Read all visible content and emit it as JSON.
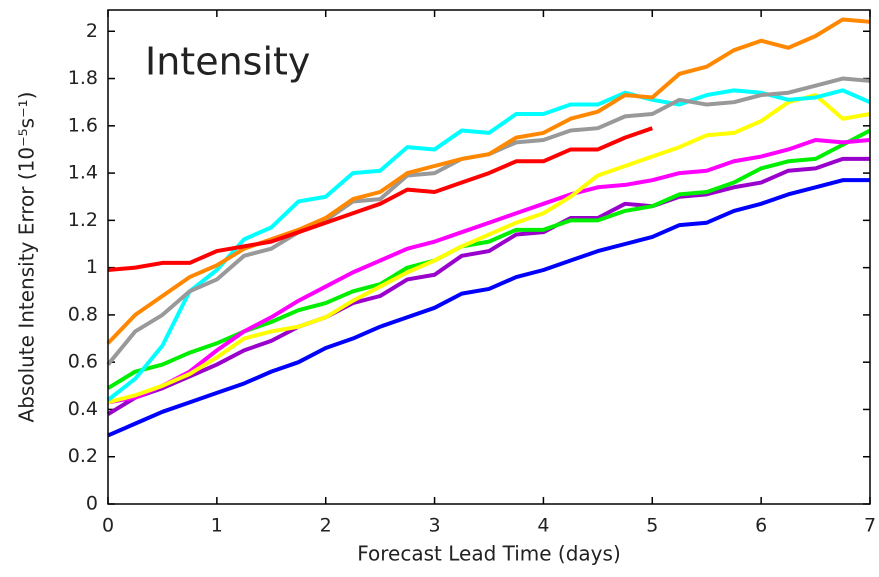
{
  "chart_data": {
    "type": "line",
    "annotation": "Intensity",
    "xlabel": "Forecast Lead Time (days)",
    "ylabel": "Absolute Intensity Error (10⁻⁵s⁻¹)",
    "x": [
      0,
      0.25,
      0.5,
      0.75,
      1,
      1.25,
      1.5,
      1.75,
      2,
      2.25,
      2.5,
      2.75,
      3,
      3.25,
      3.5,
      3.75,
      4,
      4.25,
      4.5,
      4.75,
      5,
      5.25,
      5.5,
      5.75,
      6,
      6.25,
      6.5,
      6.75,
      7
    ],
    "xlim": [
      0,
      7
    ],
    "xticks": [
      0,
      1,
      2,
      3,
      4,
      5,
      6,
      7
    ],
    "ylim": [
      0,
      2.09
    ],
    "yticks": [
      0,
      0.2,
      0.4,
      0.6,
      0.8,
      1,
      1.2,
      1.4,
      1.6,
      1.8,
      2
    ],
    "series": [
      {
        "color": "#0000ff",
        "values": [
          0.29,
          0.34,
          0.39,
          0.43,
          0.47,
          0.51,
          0.56,
          0.6,
          0.66,
          0.7,
          0.75,
          0.79,
          0.83,
          0.89,
          0.91,
          0.96,
          0.99,
          1.03,
          1.07,
          1.1,
          1.13,
          1.18,
          1.19,
          1.24,
          1.27,
          1.31,
          1.34,
          1.37,
          1.37
        ]
      },
      {
        "color": "#9900cc",
        "values": [
          0.38,
          0.45,
          0.49,
          0.54,
          0.59,
          0.65,
          0.69,
          0.75,
          0.79,
          0.85,
          0.88,
          0.95,
          0.97,
          1.05,
          1.07,
          1.14,
          1.15,
          1.21,
          1.21,
          1.27,
          1.26,
          1.3,
          1.31,
          1.34,
          1.36,
          1.41,
          1.42,
          1.46,
          1.46
        ]
      },
      {
        "color": "#00ee00",
        "values": [
          0.49,
          0.56,
          0.59,
          0.64,
          0.68,
          0.73,
          0.77,
          0.82,
          0.85,
          0.9,
          0.93,
          1.0,
          1.03,
          1.09,
          1.11,
          1.16,
          1.16,
          1.2,
          1.2,
          1.24,
          1.26,
          1.31,
          1.32,
          1.36,
          1.42,
          1.45,
          1.46,
          1.52,
          1.58
        ]
      },
      {
        "color": "#ff00ff",
        "values": [
          0.43,
          0.45,
          0.5,
          0.56,
          0.65,
          0.73,
          0.79,
          0.86,
          0.92,
          0.98,
          1.03,
          1.08,
          1.11,
          1.15,
          1.19,
          1.23,
          1.27,
          1.31,
          1.34,
          1.35,
          1.37,
          1.4,
          1.41,
          1.45,
          1.47,
          1.5,
          1.54,
          1.53,
          1.54
        ]
      },
      {
        "color": "#ffff00",
        "values": [
          0.43,
          0.46,
          0.5,
          0.55,
          0.62,
          0.7,
          0.73,
          0.75,
          0.79,
          0.86,
          0.92,
          0.98,
          1.03,
          1.09,
          1.14,
          1.19,
          1.23,
          1.3,
          1.39,
          1.43,
          1.47,
          1.51,
          1.56,
          1.57,
          1.62,
          1.7,
          1.73,
          1.63,
          1.65
        ]
      },
      {
        "color": "#00ffff",
        "values": [
          0.44,
          0.53,
          0.67,
          0.9,
          0.99,
          1.12,
          1.17,
          1.28,
          1.3,
          1.4,
          1.41,
          1.51,
          1.5,
          1.58,
          1.57,
          1.65,
          1.65,
          1.69,
          1.69,
          1.74,
          1.71,
          1.69,
          1.73,
          1.75,
          1.74,
          1.71,
          1.72,
          1.75,
          1.7
        ]
      },
      {
        "color": "#999999",
        "values": [
          0.59,
          0.73,
          0.8,
          0.9,
          0.95,
          1.05,
          1.08,
          1.15,
          1.2,
          1.28,
          1.29,
          1.39,
          1.4,
          1.46,
          1.48,
          1.53,
          1.54,
          1.58,
          1.59,
          1.64,
          1.65,
          1.71,
          1.69,
          1.7,
          1.73,
          1.74,
          1.77,
          1.8,
          1.79
        ]
      },
      {
        "color": "#ff8800",
        "values": [
          0.68,
          0.8,
          0.88,
          0.96,
          1.01,
          1.08,
          1.12,
          1.16,
          1.21,
          1.29,
          1.32,
          1.4,
          1.43,
          1.46,
          1.48,
          1.55,
          1.57,
          1.63,
          1.66,
          1.73,
          1.72,
          1.82,
          1.85,
          1.92,
          1.96,
          1.93,
          1.98,
          2.05,
          2.04
        ]
      },
      {
        "color": "#ff0000",
        "values": [
          0.99,
          1.0,
          1.02,
          1.02,
          1.07,
          1.09,
          1.11,
          1.15,
          1.19,
          1.23,
          1.27,
          1.33,
          1.32,
          1.36,
          1.4,
          1.45,
          1.45,
          1.5,
          1.5,
          1.55,
          1.59,
          null,
          null,
          null,
          null,
          null,
          null,
          null,
          null
        ]
      }
    ]
  }
}
